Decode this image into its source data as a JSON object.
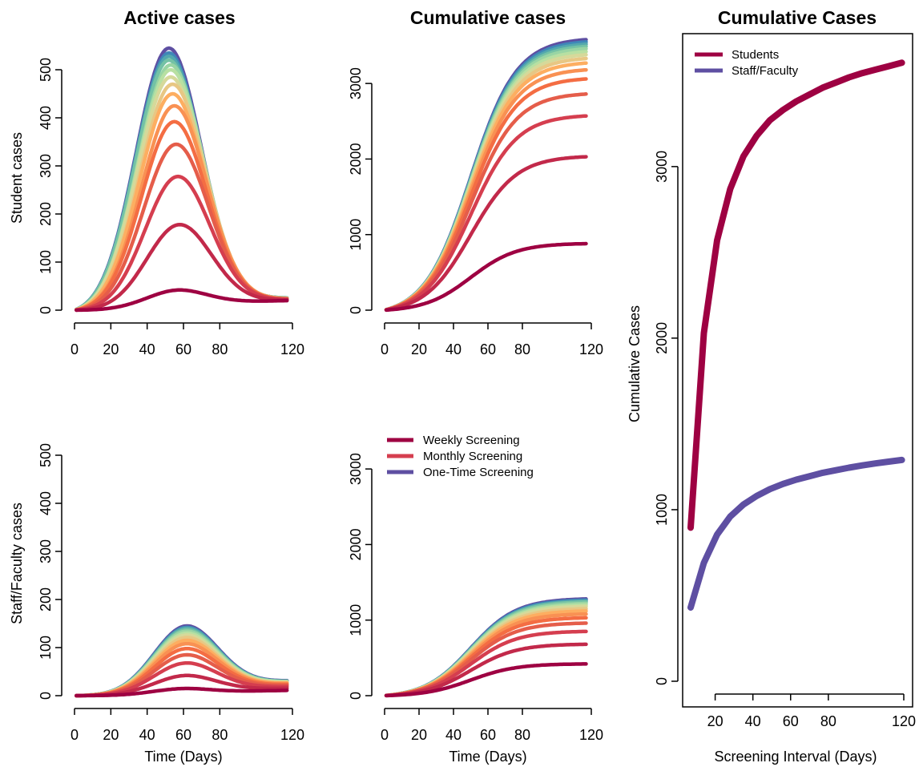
{
  "chart_data": [
    {
      "type": "line",
      "title": "Active cases",
      "xlabel": "",
      "ylabel": "Student cases",
      "xlim": [
        0,
        120
      ],
      "ylim": [
        0,
        550
      ],
      "xticks": [
        "0",
        "20",
        "40",
        "60",
        "80",
        "120"
      ],
      "yticks": [
        "0",
        "100",
        "200",
        "300",
        "400",
        "500"
      ],
      "series_kind": "active",
      "series_count": 15,
      "peak_day": [
        58,
        58,
        57,
        56,
        55,
        55,
        54,
        54,
        53,
        53,
        53,
        52,
        52,
        52,
        52
      ],
      "peak_value": [
        42,
        178,
        278,
        345,
        392,
        425,
        450,
        470,
        485,
        500,
        510,
        520,
        528,
        535,
        545
      ],
      "end_value": [
        23,
        24,
        25,
        25,
        26,
        26,
        26,
        27,
        27,
        27,
        27,
        28,
        28,
        28,
        28
      ]
    },
    {
      "type": "line",
      "title": "Cumulative cases",
      "xlabel": "",
      "ylabel": "",
      "xlim": [
        0,
        120
      ],
      "ylim": [
        0,
        3500
      ],
      "xticks": [
        "0",
        "20",
        "40",
        "60",
        "80",
        "120"
      ],
      "yticks": [
        "0",
        "1000",
        "2000",
        "3000"
      ],
      "series_kind": "cumulative",
      "series_count": 15,
      "end_value": [
        880,
        2030,
        2570,
        2860,
        3060,
        3180,
        3270,
        3330,
        3380,
        3420,
        3460,
        3490,
        3520,
        3550,
        3580
      ]
    },
    {
      "type": "line",
      "title": "",
      "xlabel": "Time (Days)",
      "ylabel": "Staff/Faculty cases",
      "xlim": [
        0,
        120
      ],
      "ylim": [
        0,
        550
      ],
      "xticks": [
        "0",
        "20",
        "40",
        "60",
        "80",
        "120"
      ],
      "yticks": [
        "0",
        "100",
        "200",
        "300",
        "400",
        "500"
      ],
      "series_kind": "active",
      "series_count": 15,
      "peak_day": [
        62,
        62,
        62,
        62,
        62,
        62,
        62,
        62,
        62,
        62,
        62,
        62,
        62,
        62,
        62
      ],
      "peak_value": [
        15,
        42,
        68,
        85,
        98,
        108,
        115,
        121,
        126,
        130,
        134,
        137,
        140,
        142,
        145
      ],
      "end_value": [
        13,
        18,
        22,
        25,
        27,
        29,
        30,
        31,
        32,
        33,
        34,
        34,
        35,
        35,
        36
      ]
    },
    {
      "type": "line",
      "title": "",
      "xlabel": "Time (Days)",
      "ylabel": "",
      "xlim": [
        0,
        120
      ],
      "ylim": [
        0,
        3500
      ],
      "xticks": [
        "0",
        "20",
        "40",
        "60",
        "80",
        "120"
      ],
      "yticks": [
        "0",
        "1000",
        "2000",
        "3000"
      ],
      "series_kind": "cumulative",
      "series_count": 15,
      "end_value": [
        420,
        680,
        850,
        960,
        1030,
        1080,
        1120,
        1150,
        1180,
        1200,
        1220,
        1240,
        1250,
        1265,
        1280
      ],
      "legend": {
        "position": "top-center",
        "entries": [
          {
            "name": "Weekly Screening",
            "color": "#9e0142"
          },
          {
            "name": "Monthly Screening",
            "color": "#d53e4f"
          },
          {
            "name": "One-Time Screening",
            "color": "#5e4fa2"
          }
        ]
      }
    },
    {
      "type": "line",
      "title": "Cumulative Cases",
      "xlabel": "Screening Interval (Days)",
      "ylabel": "Cumulative Cases",
      "xlim": [
        7,
        120
      ],
      "ylim": [
        0,
        3700
      ],
      "xticks": [
        "20",
        "40",
        "60",
        "80",
        "120"
      ],
      "yticks": [
        "0",
        "1000",
        "2000",
        "3000"
      ],
      "x": [
        7,
        14,
        21,
        28,
        35,
        42,
        49,
        56,
        63,
        70,
        77,
        84,
        91,
        98,
        105,
        112,
        119
      ],
      "series": [
        {
          "name": "Students",
          "color": "#9e0142",
          "values": [
            895,
            2030,
            2570,
            2870,
            3060,
            3180,
            3270,
            3330,
            3380,
            3420,
            3460,
            3490,
            3520,
            3545,
            3565,
            3585,
            3605
          ]
        },
        {
          "name": "Staff/Faculty",
          "color": "#5e4fa2",
          "values": [
            430,
            690,
            855,
            960,
            1030,
            1080,
            1120,
            1150,
            1175,
            1195,
            1215,
            1230,
            1245,
            1258,
            1270,
            1280,
            1290
          ]
        }
      ],
      "legend": {
        "position": "top-left"
      }
    }
  ],
  "palette": [
    "#9e0142",
    "#c2294a",
    "#d53e4f",
    "#e55d4a",
    "#f46d43",
    "#f99153",
    "#fdae61",
    "#e8c784",
    "#d6d99a",
    "#b8e0a2",
    "#99d5a4",
    "#74c2a5",
    "#53a8ad",
    "#3f87b8",
    "#5e4fa2"
  ]
}
